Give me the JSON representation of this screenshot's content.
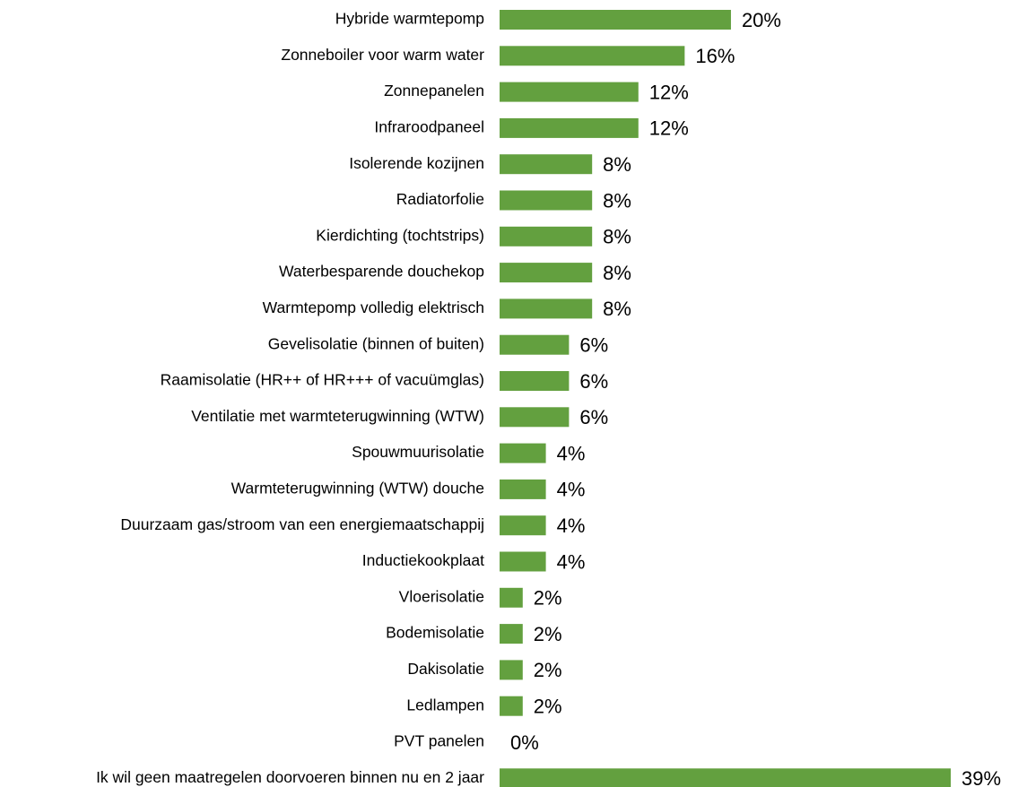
{
  "chart_data": {
    "type": "bar",
    "orientation": "horizontal",
    "color": "#63a03f",
    "categories": [
      "Hybride warmtepomp",
      "Zonneboiler voor warm water",
      "Zonnepanelen",
      "Infraroodpaneel",
      "Isolerende kozijnen",
      "Radiatorfolie",
      "Kierdichting (tochtstrips)",
      "Waterbesparende douchekop",
      "Warmtepomp volledig elektrisch",
      "Gevelisolatie (binnen of buiten)",
      "Raamisolatie (HR++ of HR+++ of vacuümglas)",
      "Ventilatie met warmteterugwinning (WTW)",
      "Spouwmuurisolatie",
      "Warmteterugwinning (WTW) douche",
      "Duurzaam gas/stroom van een energiemaatschappij",
      "Inductiekookplaat",
      "Vloerisolatie",
      "Bodemisolatie",
      "Dakisolatie",
      "Ledlampen",
      "PVT panelen",
      "Ik wil geen maatregelen doorvoeren binnen nu en 2 jaar"
    ],
    "values": [
      20,
      16,
      12,
      12,
      8,
      8,
      8,
      8,
      8,
      6,
      6,
      6,
      4,
      4,
      4,
      4,
      2,
      2,
      2,
      2,
      0,
      39
    ],
    "value_labels": [
      "20%",
      "16%",
      "12%",
      "12%",
      "8%",
      "8%",
      "8%",
      "8%",
      "8%",
      "6%",
      "6%",
      "6%",
      "4%",
      "4%",
      "4%",
      "4%",
      "2%",
      "2%",
      "2%",
      "2%",
      "0%",
      "39%"
    ]
  }
}
